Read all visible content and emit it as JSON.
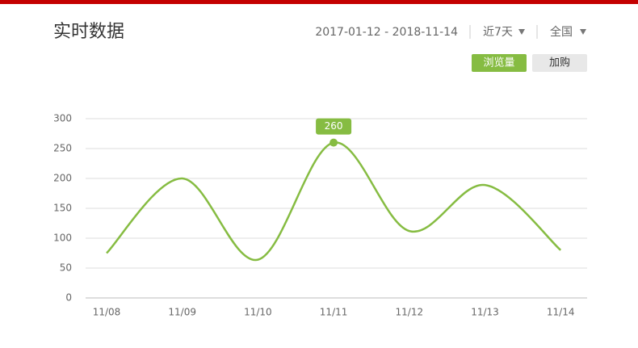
{
  "chart_data": {
    "type": "line",
    "title": "实时数据",
    "date_range": "2017-01-12 -  2018-11-14",
    "period": "近7天",
    "region": "全国",
    "tabs": [
      "浏览量",
      "加购"
    ],
    "categories": [
      "11/08",
      "11/09",
      "11/10",
      "11/11",
      "11/12",
      "11/13",
      "11/14"
    ],
    "series": [
      {
        "name": "浏览量",
        "color": "#86bc42",
        "values": [
          75,
          200,
          64,
          260,
          112,
          189,
          80
        ]
      }
    ],
    "highlight_index": 3,
    "ylim": [
      0,
      300
    ],
    "yticks": [
      0,
      50,
      100,
      150,
      200,
      250,
      300
    ],
    "grid": true
  }
}
